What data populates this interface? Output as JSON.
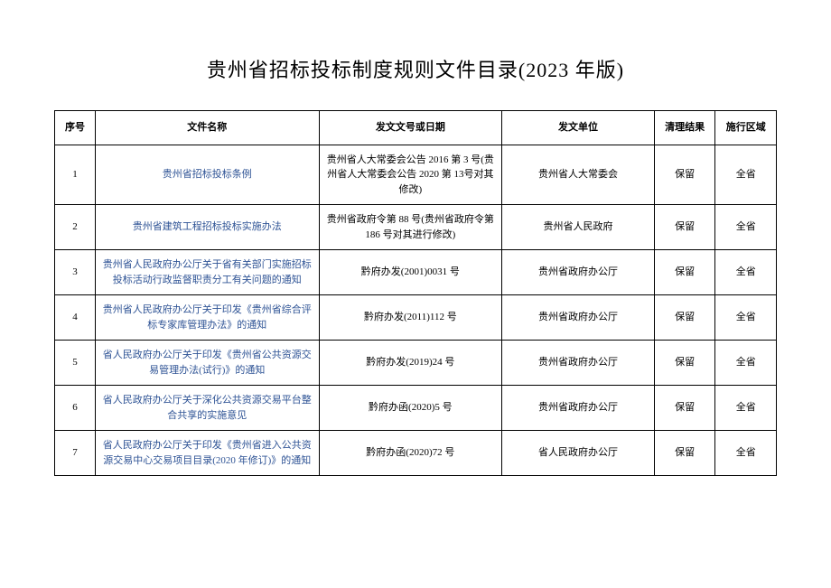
{
  "title": "贵州省招标投标制度规则文件目录(2023 年版)",
  "table": {
    "columns": [
      "序号",
      "文件名称",
      "发文文号或日期",
      "发文单位",
      "清理结果",
      "施行区域"
    ],
    "rows": [
      {
        "seq": "1",
        "name": "贵州省招标投标条例",
        "docno": "贵州省人大常委会公告 2016 第 3 号(贵州省人大常委会公告 2020 第 13号对其修改)",
        "issuer": "贵州省人大常委会",
        "result": "保留",
        "area": "全省"
      },
      {
        "seq": "2",
        "name": "贵州省建筑工程招标投标实施办法",
        "docno": "贵州省政府令第 88 号(贵州省政府令第 186 号对其进行修改)",
        "issuer": "贵州省人民政府",
        "result": "保留",
        "area": "全省"
      },
      {
        "seq": "3",
        "name": "贵州省人民政府办公厅关于省有关部门实施招标投标活动行政监督职责分工有关问题的通知",
        "docno": "黔府办发(2001)0031 号",
        "issuer": "贵州省政府办公厅",
        "result": "保留",
        "area": "全省"
      },
      {
        "seq": "4",
        "name": "贵州省人民政府办公厅关于印发《贵州省综合评标专家库管理办法》的通知",
        "docno": "黔府办发(2011)112 号",
        "issuer": "贵州省政府办公厅",
        "result": "保留",
        "area": "全省"
      },
      {
        "seq": "5",
        "name": "省人民政府办公厅关于印发《贵州省公共资源交易管理办法(试行)》的通知",
        "docno": "黔府办发(2019)24 号",
        "issuer": "贵州省政府办公厅",
        "result": "保留",
        "area": "全省"
      },
      {
        "seq": "6",
        "name": "省人民政府办公厅关于深化公共资源交易平台整合共享的实施意见",
        "docno": "黔府办函(2020)5 号",
        "issuer": "贵州省政府办公厅",
        "result": "保留",
        "area": "全省"
      },
      {
        "seq": "7",
        "name": "省人民政府办公厅关于印发《贵州省进入公共资源交易中心交易项目目录(2020 年修订)》的通知",
        "docno": "黔府办函(2020)72 号",
        "issuer": "省人民政府办公厅",
        "result": "保留",
        "area": "全省"
      }
    ]
  },
  "styles": {
    "link_color": "#2e5395",
    "text_color": "#000000",
    "border_color": "#000000",
    "background_color": "#ffffff",
    "title_fontsize": 22,
    "cell_fontsize": 11
  }
}
